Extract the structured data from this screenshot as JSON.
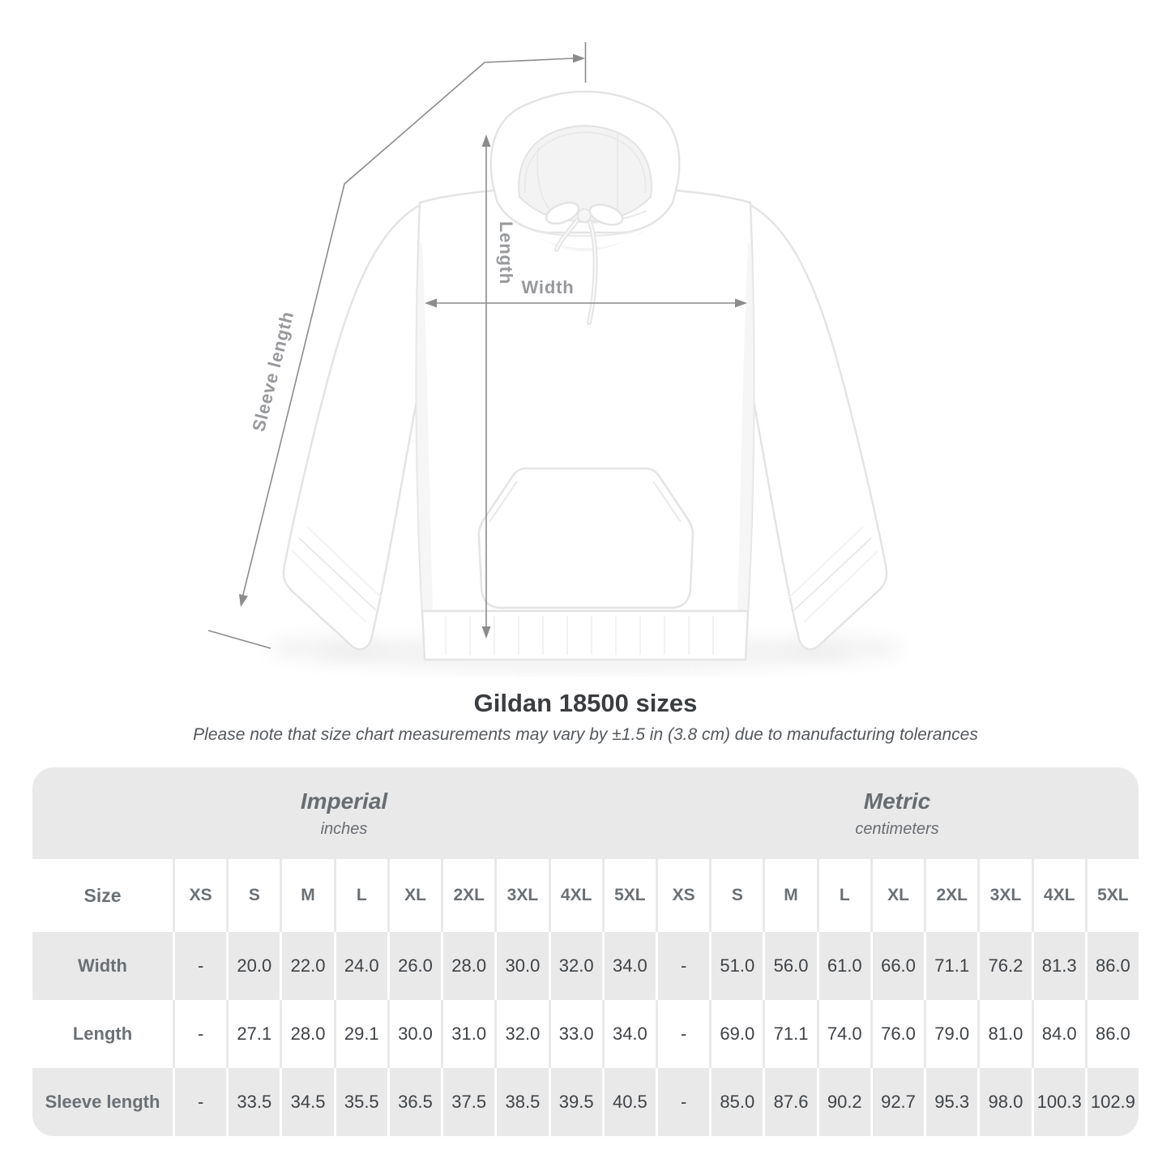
{
  "diagram": {
    "length_label": "Length",
    "width_label": "Width",
    "sleeve_length_label": "Sleeve length"
  },
  "title": "Gildan 18500 sizes",
  "subtitle": "Please note that size chart measurements may vary by ±1.5 in (3.8 cm) due to manufacturing tolerances",
  "table": {
    "size_header": "Size",
    "sizes": [
      "XS",
      "S",
      "M",
      "L",
      "XL",
      "2XL",
      "3XL",
      "4XL",
      "5XL"
    ],
    "unit_groups": [
      {
        "name": "Imperial",
        "unit": "inches"
      },
      {
        "name": "Metric",
        "unit": "centimeters"
      }
    ],
    "rows": [
      {
        "label": "Width",
        "imperial": [
          "-",
          "20.0",
          "22.0",
          "24.0",
          "26.0",
          "28.0",
          "30.0",
          "32.0",
          "34.0"
        ],
        "metric": [
          "-",
          "51.0",
          "56.0",
          "61.0",
          "66.0",
          "71.1",
          "76.2",
          "81.3",
          "86.0"
        ]
      },
      {
        "label": "Length",
        "imperial": [
          "-",
          "27.1",
          "28.0",
          "29.1",
          "30.0",
          "31.0",
          "32.0",
          "33.0",
          "34.0"
        ],
        "metric": [
          "-",
          "69.0",
          "71.1",
          "74.0",
          "76.0",
          "79.0",
          "81.0",
          "84.0",
          "86.0"
        ]
      },
      {
        "label": "Sleeve length",
        "imperial": [
          "-",
          "33.5",
          "34.5",
          "35.5",
          "36.5",
          "37.5",
          "38.5",
          "39.5",
          "40.5"
        ],
        "metric": [
          "-",
          "85.0",
          "87.6",
          "90.2",
          "92.7",
          "95.3",
          "98.0",
          "100.3",
          "102.9"
        ]
      }
    ]
  },
  "colors": {
    "title_text": "#3a3d40",
    "subtitle_text": "#54585c",
    "band_gray": "#e9e9e9",
    "band_text": "#686d72",
    "header_text": "#6b7075",
    "value_text": "#3f4347",
    "separator_on_white": "#e9e9e9",
    "separator_on_gray": "#ffffff",
    "measure_line": "#8c8c8c",
    "measure_label": "#97999c",
    "hoodie_outline": "#e4e4e4"
  }
}
